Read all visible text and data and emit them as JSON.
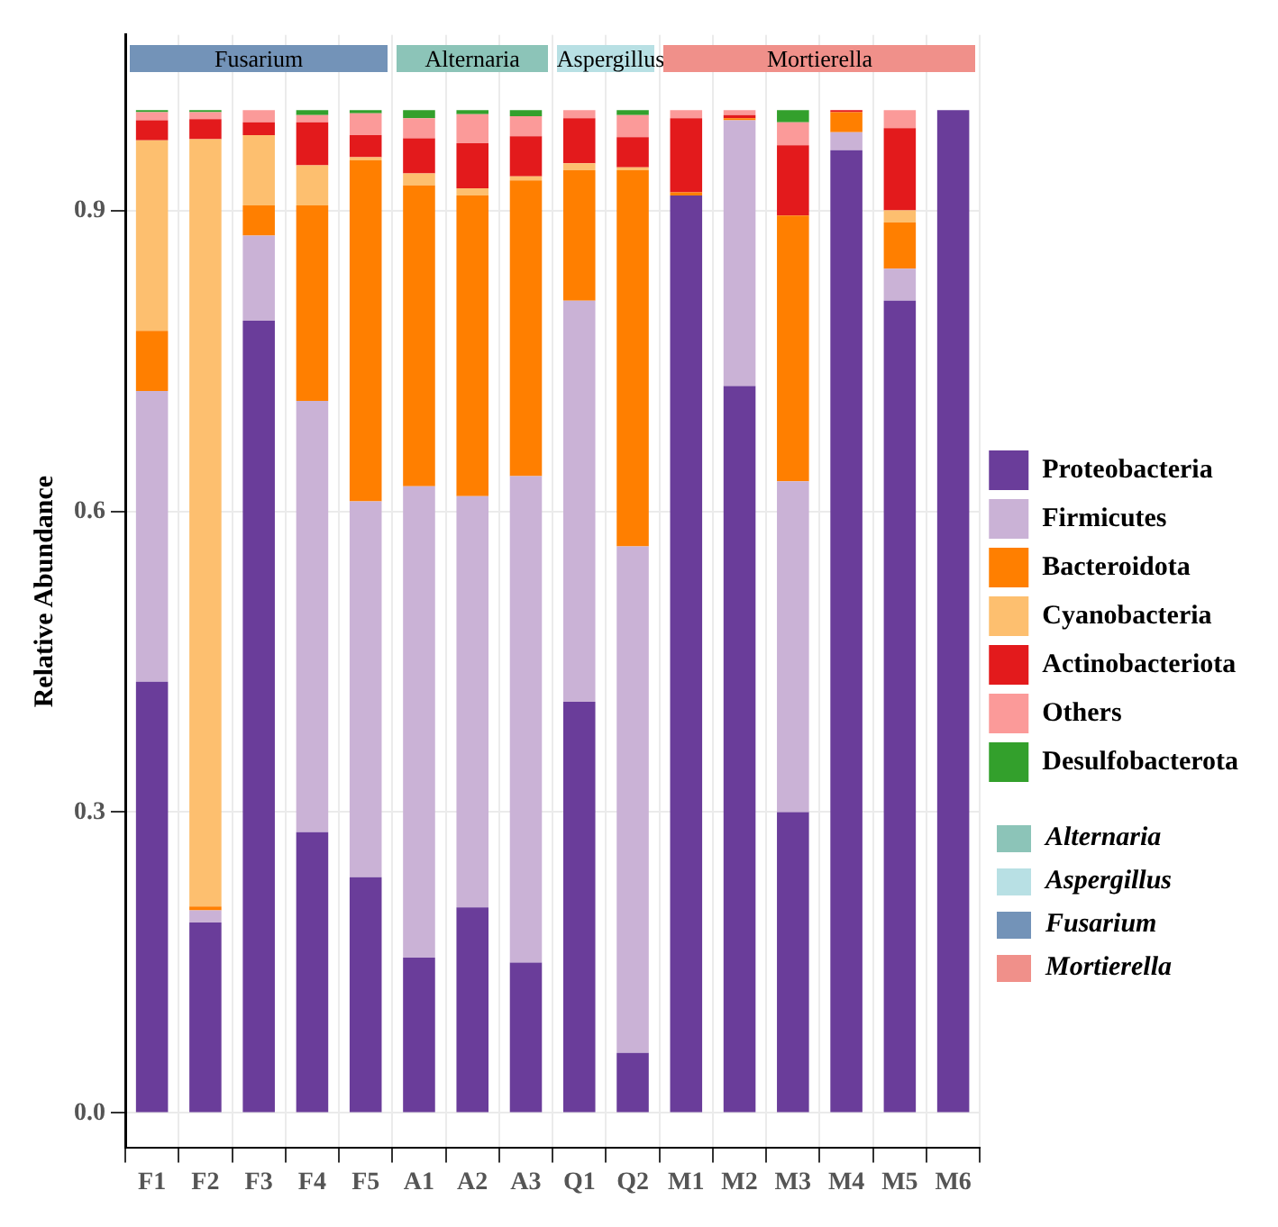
{
  "chart_data": {
    "type": "bar",
    "stacked": true,
    "ylabel": "Relative Abundance",
    "legend": "right",
    "grid": true,
    "categories": [
      "F1",
      "F2",
      "F3",
      "F4",
      "F5",
      "A1",
      "A2",
      "A3",
      "Q1",
      "Q2",
      "M1",
      "M2",
      "M3",
      "M4",
      "M5",
      "M6"
    ],
    "ylim": [
      -0.035,
      1.075
    ],
    "yticks": [
      {
        "value": 0,
        "label": "0.0"
      },
      {
        "value": 0.3,
        "label": "0.3"
      },
      {
        "value": 0.6,
        "label": "0.6"
      },
      {
        "value": 0.9,
        "label": "0.9"
      }
    ],
    "series": [
      {
        "name": "Proteobacteria",
        "color": "#6a3d9a",
        "values": [
          0.43,
          0.19,
          0.79,
          0.28,
          0.235,
          0.155,
          0.205,
          0.15,
          0.41,
          0.06,
          0.915,
          0.725,
          0.3,
          0.96,
          0.81,
          1.0
        ]
      },
      {
        "name": "Firmicutes",
        "color": "#cab2d6",
        "values": [
          0.29,
          0.012,
          0.085,
          0.43,
          0.375,
          0.47,
          0.41,
          0.485,
          0.4,
          0.505,
          0,
          0.265,
          0.33,
          0.018,
          0.032,
          0
        ]
      },
      {
        "name": "Bacteroidota",
        "color": "#ff7f00",
        "values": [
          0.06,
          0.004,
          0.03,
          0.195,
          0.34,
          0.3,
          0.3,
          0.295,
          0.13,
          0.375,
          0.003,
          0.002,
          0.265,
          0.02,
          0.046,
          0
        ]
      },
      {
        "name": "Cyanobacteria",
        "color": "#fdbf6f",
        "values": [
          0.19,
          0.765,
          0.07,
          0.04,
          0.003,
          0.012,
          0.007,
          0.004,
          0.007,
          0.003,
          0,
          0,
          0,
          0,
          0.012,
          0
        ]
      },
      {
        "name": "Actinobacteriota",
        "color": "#e31a1c",
        "values": [
          0.02,
          0.02,
          0.013,
          0.043,
          0.022,
          0.035,
          0.045,
          0.04,
          0.045,
          0.03,
          0.074,
          0.003,
          0.07,
          0.002,
          0.082,
          0
        ]
      },
      {
        "name": "Others",
        "color": "#fb9a99",
        "values": [
          0.008,
          0.007,
          0.012,
          0.007,
          0.022,
          0.02,
          0.029,
          0.02,
          0.008,
          0.022,
          0.008,
          0.005,
          0.023,
          0,
          0.018,
          0
        ]
      },
      {
        "name": "Desulfobacterota",
        "color": "#33a02c",
        "values": [
          0.002,
          0.002,
          0,
          0.005,
          0.003,
          0.008,
          0.004,
          0.006,
          0,
          0.005,
          0,
          0,
          0.012,
          0,
          0,
          0
        ]
      }
    ],
    "annotations": [
      "Fusarium",
      "Alternaria",
      "Aspergillus",
      "Mortierella",
      "Alternaria",
      "Aspergillus",
      "Fusarium",
      "Mortierella"
    ]
  }
}
